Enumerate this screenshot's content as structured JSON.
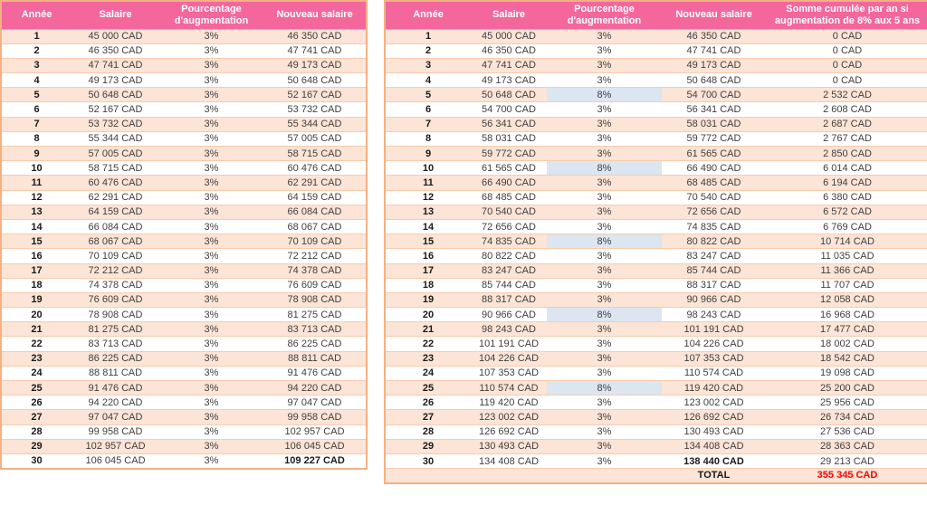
{
  "colors": {
    "header_bg": "#F4679C",
    "header_text": "#FFFFFF",
    "row_stripe": "#FCE4D6",
    "outer_border": "#F4B183",
    "row_separator": "#F8CBAD",
    "highlight_8pct": "#DCE6F1",
    "total_value_text": "#FF0000"
  },
  "left_table": {
    "headers": [
      "Année",
      "Salaire",
      "Pourcentage d'augmentation",
      "Nouveau salaire"
    ],
    "rows": [
      [
        "1",
        "45 000 CAD",
        "3%",
        "46 350 CAD"
      ],
      [
        "2",
        "46 350 CAD",
        "3%",
        "47 741 CAD"
      ],
      [
        "3",
        "47 741 CAD",
        "3%",
        "49 173 CAD"
      ],
      [
        "4",
        "49 173 CAD",
        "3%",
        "50 648 CAD"
      ],
      [
        "5",
        "50 648 CAD",
        "3%",
        "52 167 CAD"
      ],
      [
        "6",
        "52 167 CAD",
        "3%",
        "53 732 CAD"
      ],
      [
        "7",
        "53 732 CAD",
        "3%",
        "55 344 CAD"
      ],
      [
        "8",
        "55 344 CAD",
        "3%",
        "57 005 CAD"
      ],
      [
        "9",
        "57 005 CAD",
        "3%",
        "58 715 CAD"
      ],
      [
        "10",
        "58 715 CAD",
        "3%",
        "60 476 CAD"
      ],
      [
        "11",
        "60 476 CAD",
        "3%",
        "62 291 CAD"
      ],
      [
        "12",
        "62 291 CAD",
        "3%",
        "64 159 CAD"
      ],
      [
        "13",
        "64 159 CAD",
        "3%",
        "66 084 CAD"
      ],
      [
        "14",
        "66 084 CAD",
        "3%",
        "68 067 CAD"
      ],
      [
        "15",
        "68 067 CAD",
        "3%",
        "70 109 CAD"
      ],
      [
        "16",
        "70 109 CAD",
        "3%",
        "72 212 CAD"
      ],
      [
        "17",
        "72 212 CAD",
        "3%",
        "74 378 CAD"
      ],
      [
        "18",
        "74 378 CAD",
        "3%",
        "76 609 CAD"
      ],
      [
        "19",
        "76 609 CAD",
        "3%",
        "78 908 CAD"
      ],
      [
        "20",
        "78 908 CAD",
        "3%",
        "81 275 CAD"
      ],
      [
        "21",
        "81 275 CAD",
        "3%",
        "83 713 CAD"
      ],
      [
        "22",
        "83 713 CAD",
        "3%",
        "86 225 CAD"
      ],
      [
        "23",
        "86 225 CAD",
        "3%",
        "88 811 CAD"
      ],
      [
        "24",
        "88 811 CAD",
        "3%",
        "91 476 CAD"
      ],
      [
        "25",
        "91 476 CAD",
        "3%",
        "94 220 CAD"
      ],
      [
        "26",
        "94 220 CAD",
        "3%",
        "97 047 CAD"
      ],
      [
        "27",
        "97 047 CAD",
        "3%",
        "99 958 CAD"
      ],
      [
        "28",
        "99 958 CAD",
        "3%",
        "102 957 CAD"
      ],
      [
        "29",
        "102 957 CAD",
        "3%",
        "106 045 CAD"
      ],
      [
        "30",
        "106 045 CAD",
        "3%",
        "109 227 CAD"
      ]
    ]
  },
  "right_table": {
    "headers": [
      "Année",
      "Salaire",
      "Pourcentage d'augmentation",
      "Nouveau salaire",
      "Somme cumulée par an si augmentation de 8% aux 5 ans"
    ],
    "rows": [
      [
        "1",
        "45 000 CAD",
        "3%",
        "46 350 CAD",
        "0 CAD"
      ],
      [
        "2",
        "46 350 CAD",
        "3%",
        "47 741 CAD",
        "0 CAD"
      ],
      [
        "3",
        "47 741 CAD",
        "3%",
        "49 173 CAD",
        "0 CAD"
      ],
      [
        "4",
        "49 173 CAD",
        "3%",
        "50 648 CAD",
        "0 CAD"
      ],
      [
        "5",
        "50 648 CAD",
        "8%",
        "54 700 CAD",
        "2 532 CAD"
      ],
      [
        "6",
        "54 700 CAD",
        "3%",
        "56 341 CAD",
        "2 608 CAD"
      ],
      [
        "7",
        "56 341 CAD",
        "3%",
        "58 031 CAD",
        "2 687 CAD"
      ],
      [
        "8",
        "58 031 CAD",
        "3%",
        "59 772 CAD",
        "2 767 CAD"
      ],
      [
        "9",
        "59 772 CAD",
        "3%",
        "61 565 CAD",
        "2 850 CAD"
      ],
      [
        "10",
        "61 565 CAD",
        "8%",
        "66 490 CAD",
        "6 014 CAD"
      ],
      [
        "11",
        "66 490 CAD",
        "3%",
        "68 485 CAD",
        "6 194 CAD"
      ],
      [
        "12",
        "68 485 CAD",
        "3%",
        "70 540 CAD",
        "6 380 CAD"
      ],
      [
        "13",
        "70 540 CAD",
        "3%",
        "72 656 CAD",
        "6 572 CAD"
      ],
      [
        "14",
        "72 656 CAD",
        "3%",
        "74 835 CAD",
        "6 769 CAD"
      ],
      [
        "15",
        "74 835 CAD",
        "8%",
        "80 822 CAD",
        "10 714 CAD"
      ],
      [
        "16",
        "80 822 CAD",
        "3%",
        "83 247 CAD",
        "11 035 CAD"
      ],
      [
        "17",
        "83 247 CAD",
        "3%",
        "85 744 CAD",
        "11 366 CAD"
      ],
      [
        "18",
        "85 744 CAD",
        "3%",
        "88 317 CAD",
        "11 707 CAD"
      ],
      [
        "19",
        "88 317 CAD",
        "3%",
        "90 966 CAD",
        "12 058 CAD"
      ],
      [
        "20",
        "90 966 CAD",
        "8%",
        "98 243 CAD",
        "16 968 CAD"
      ],
      [
        "21",
        "98 243 CAD",
        "3%",
        "101 191 CAD",
        "17 477 CAD"
      ],
      [
        "22",
        "101 191 CAD",
        "3%",
        "104 226 CAD",
        "18 002 CAD"
      ],
      [
        "23",
        "104 226 CAD",
        "3%",
        "107 353 CAD",
        "18 542 CAD"
      ],
      [
        "24",
        "107 353 CAD",
        "3%",
        "110 574 CAD",
        "19 098 CAD"
      ],
      [
        "25",
        "110 574 CAD",
        "8%",
        "119 420 CAD",
        "25 200 CAD"
      ],
      [
        "26",
        "119 420 CAD",
        "3%",
        "123 002 CAD",
        "25 956 CAD"
      ],
      [
        "27",
        "123 002 CAD",
        "3%",
        "126 692 CAD",
        "26 734 CAD"
      ],
      [
        "28",
        "126 692 CAD",
        "3%",
        "130 493 CAD",
        "27 536 CAD"
      ],
      [
        "29",
        "130 493 CAD",
        "3%",
        "134 408 CAD",
        "28 363 CAD"
      ],
      [
        "30",
        "134 408 CAD",
        "3%",
        "138 440 CAD",
        "29 213 CAD"
      ]
    ],
    "total": {
      "label": "TOTAL",
      "value": "355 345 CAD"
    }
  }
}
